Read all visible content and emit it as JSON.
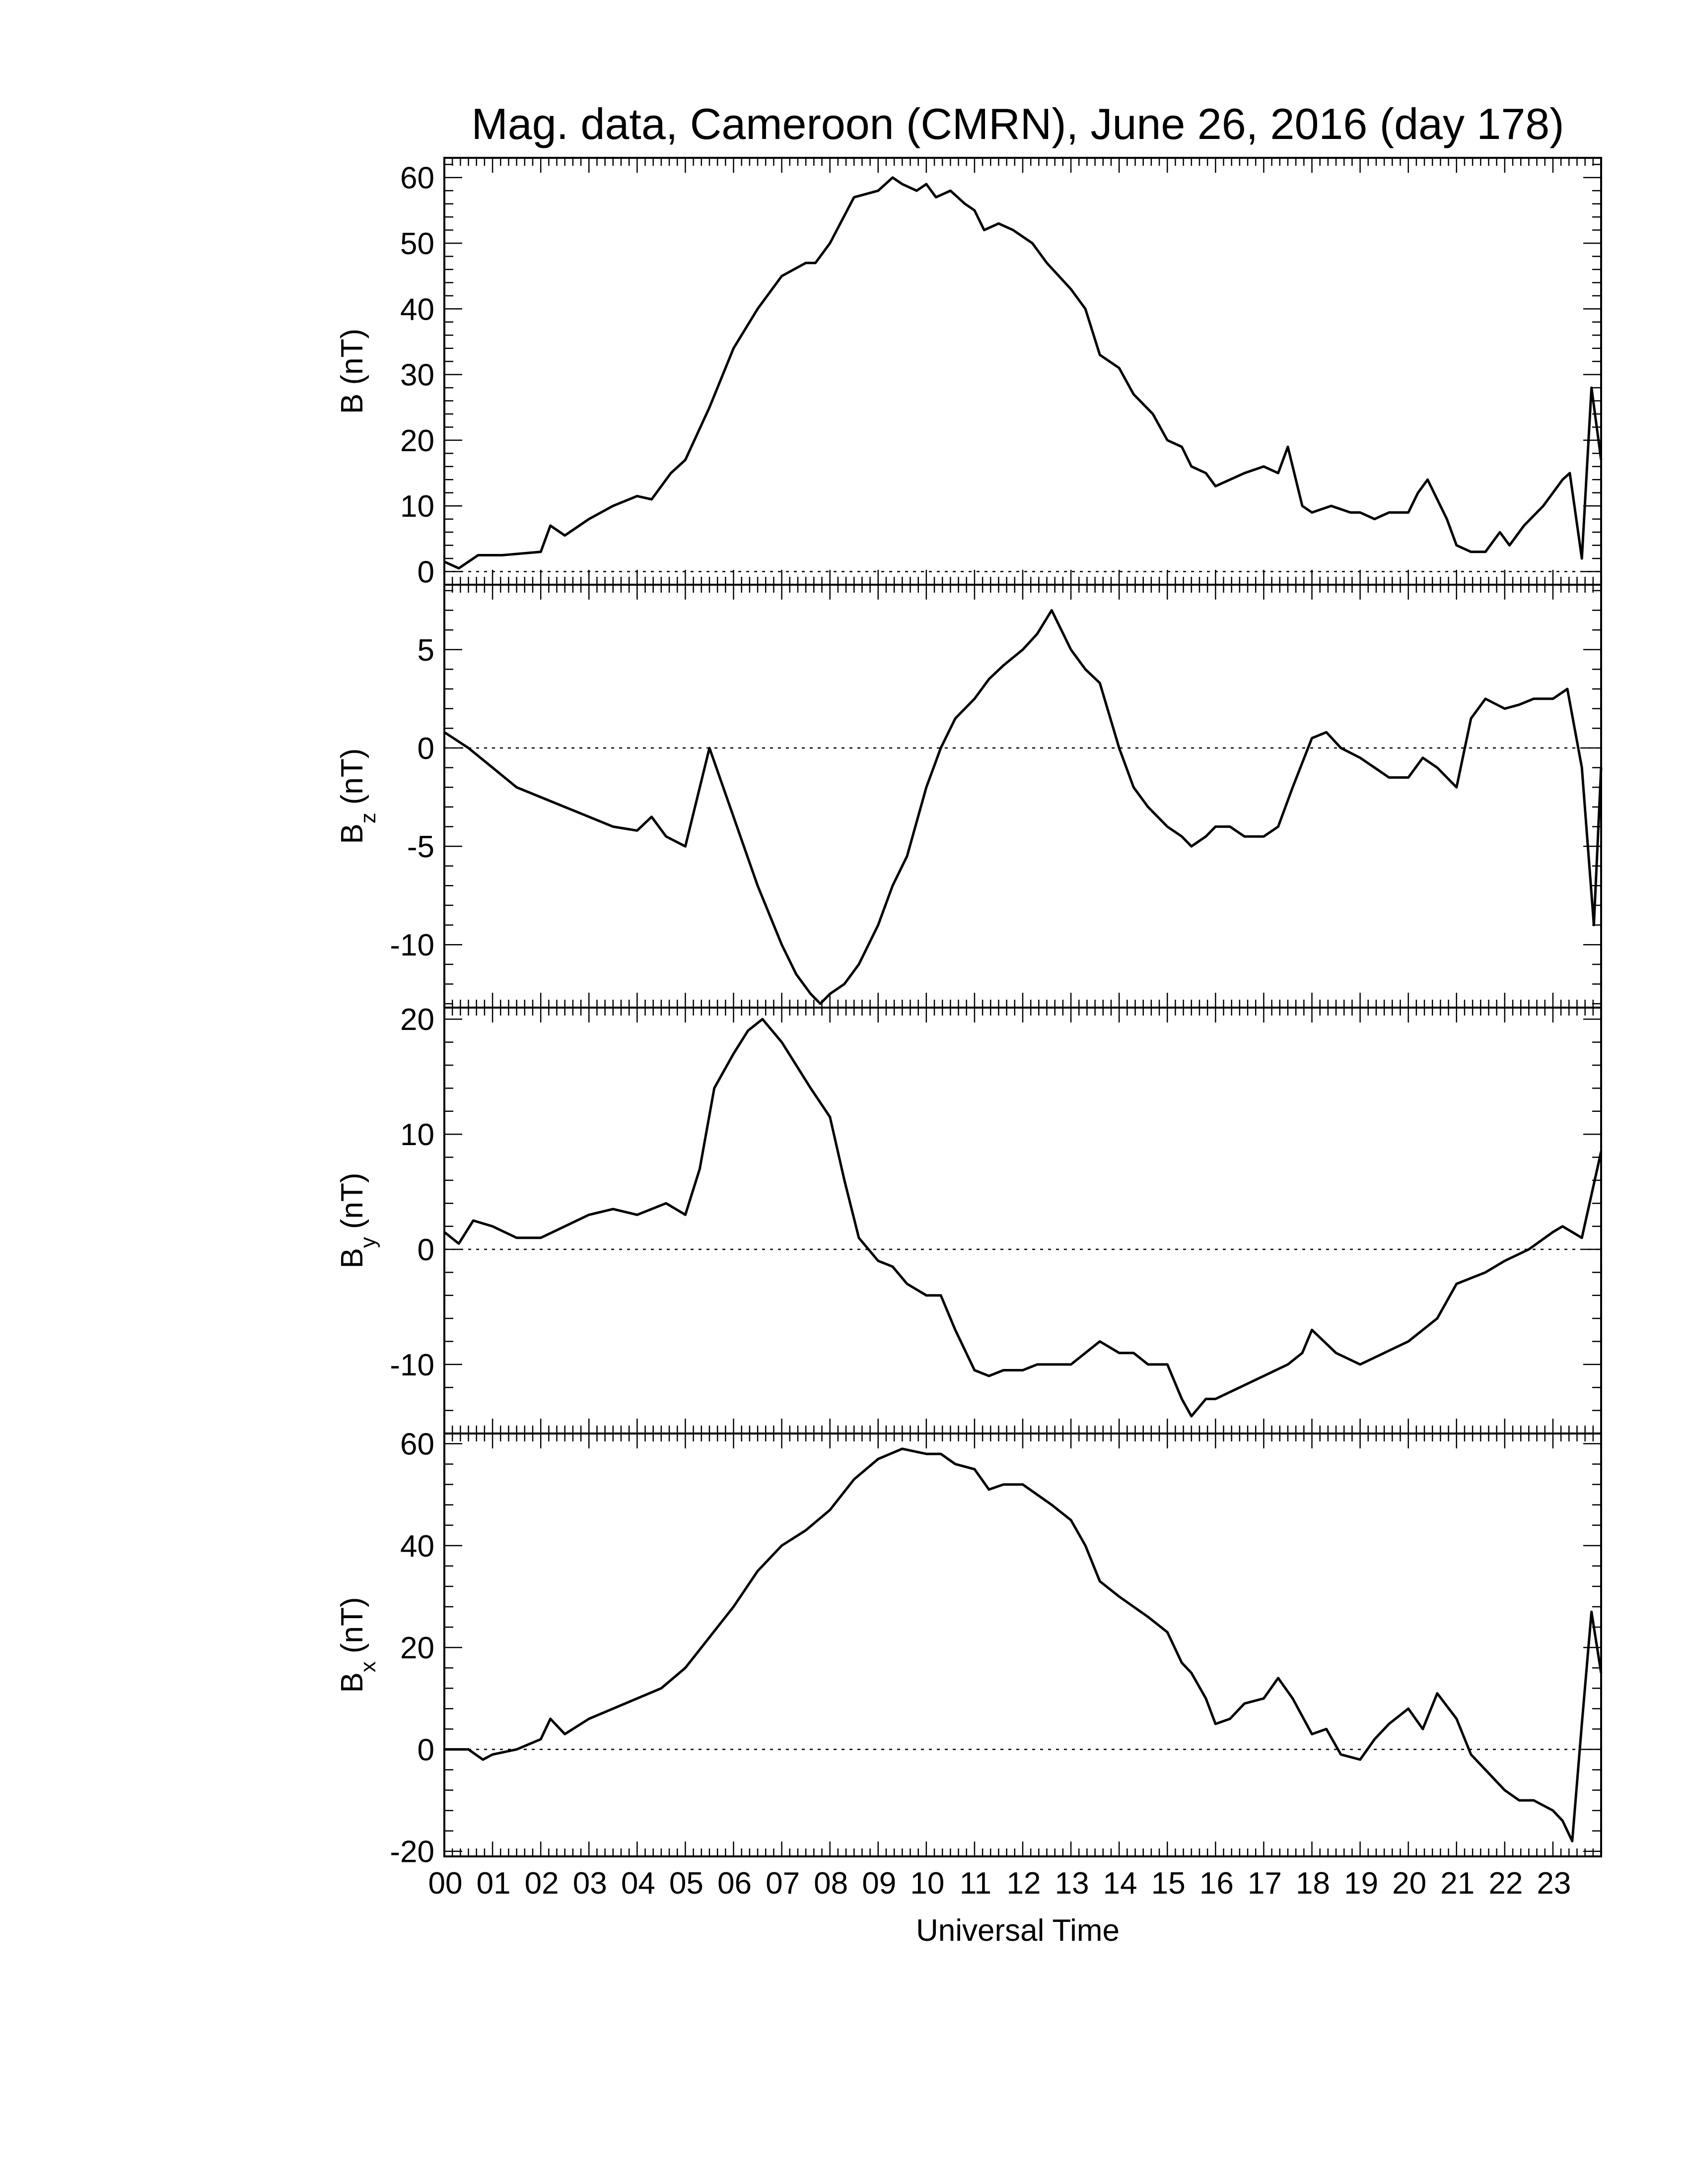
{
  "figure": {
    "title": "Mag. data, Cameroon (CMRN), June 26, 2016 (day 178)",
    "xlabel": "Universal Time",
    "x_ticks": [
      "00",
      "01",
      "02",
      "03",
      "04",
      "05",
      "06",
      "07",
      "08",
      "09",
      "10",
      "11",
      "12",
      "13",
      "14",
      "15",
      "16",
      "17",
      "18",
      "19",
      "20",
      "21",
      "22",
      "23"
    ]
  },
  "chart_data": [
    {
      "type": "line",
      "panel": "B",
      "ylabel_main": "B (nT)",
      "ylabel_sub": "",
      "ylabel_tail": "",
      "ylim": [
        -2,
        63
      ],
      "yticks": [
        0,
        10,
        20,
        30,
        40,
        50,
        60
      ],
      "zero_line": true,
      "x": [
        0,
        0.3,
        0.7,
        1.2,
        2,
        2.2,
        2.5,
        3,
        3.5,
        4,
        4.3,
        4.7,
        5,
        5.5,
        6,
        6.5,
        7,
        7.5,
        7.7,
        8,
        8.5,
        9,
        9.3,
        9.5,
        9.8,
        10,
        10.2,
        10.5,
        10.8,
        11,
        11.2,
        11.5,
        11.8,
        12,
        12.2,
        12.5,
        13,
        13.3,
        13.6,
        13.8,
        14,
        14.3,
        14.7,
        15,
        15.3,
        15.5,
        15.8,
        16,
        16.3,
        16.6,
        17,
        17.3,
        17.5,
        17.8,
        18,
        18.4,
        18.8,
        19,
        19.3,
        19.6,
        20,
        20.2,
        20.4,
        20.6,
        20.8,
        21,
        21.3,
        21.6,
        21.9,
        22.1,
        22.4,
        22.8,
        23,
        23.2,
        23.35,
        23.6,
        23.8,
        24
      ],
      "values": [
        1.5,
        0.5,
        2.5,
        2.5,
        3,
        7,
        5.5,
        8,
        10,
        11.5,
        11,
        15,
        17,
        25,
        34,
        40,
        45,
        47,
        47,
        50,
        57,
        58,
        60,
        59,
        58,
        59,
        57,
        58,
        56,
        55,
        52,
        53,
        52,
        51,
        50,
        47,
        43,
        40,
        33,
        32,
        31,
        27,
        24,
        20,
        19,
        16,
        15,
        13,
        14,
        15,
        16,
        15,
        19,
        10,
        9,
        10,
        9,
        9,
        8,
        9,
        9,
        12,
        14,
        11,
        8,
        4,
        3,
        3,
        6,
        4,
        7,
        10,
        12,
        14,
        15,
        2,
        28,
        17
      ]
    },
    {
      "type": "line",
      "panel": "Bz",
      "ylabel_main": "B",
      "ylabel_sub": "z",
      "ylabel_tail": "(nT)",
      "ylim": [
        -13.2,
        8.3
      ],
      "yticks": [
        -10,
        -5,
        0,
        5
      ],
      "zero_line": true,
      "x": [
        0,
        0.5,
        1,
        1.5,
        2,
        2.5,
        3,
        3.5,
        4,
        4.3,
        4.6,
        5,
        5.5,
        6,
        6.5,
        7,
        7.3,
        7.6,
        7.8,
        8,
        8.3,
        8.6,
        9,
        9.3,
        9.6,
        10,
        10.3,
        10.6,
        11,
        11.3,
        11.6,
        12,
        12.3,
        12.6,
        13,
        13.3,
        13.6,
        14,
        14.3,
        14.6,
        15,
        15.3,
        15.5,
        15.8,
        16,
        16.3,
        16.6,
        17,
        17.3,
        17.6,
        18,
        18.3,
        18.6,
        19,
        19.3,
        19.6,
        20,
        20.3,
        20.6,
        21,
        21.3,
        21.6,
        22,
        22.3,
        22.6,
        23,
        23.3,
        23.6,
        23.85,
        24
      ],
      "values": [
        0.8,
        0,
        -1,
        -2,
        -2.5,
        -3,
        -3.5,
        -4,
        -4.2,
        -3.5,
        -4.5,
        -5,
        0,
        -3.5,
        -7,
        -10,
        -11.5,
        -12.5,
        -13,
        -12.5,
        -12,
        -11,
        -9,
        -7,
        -5.5,
        -2,
        0,
        1.5,
        2.5,
        3.5,
        4.2,
        5,
        5.8,
        7,
        5,
        4,
        3.3,
        0,
        -2,
        -3,
        -4,
        -4.5,
        -5,
        -4.5,
        -4,
        -4,
        -4.5,
        -4.5,
        -4,
        -2,
        0.5,
        0.8,
        0,
        -0.5,
        -1,
        -1.5,
        -1.5,
        -0.5,
        -1,
        -2,
        1.5,
        2.5,
        2,
        2.2,
        2.5,
        2.5,
        3,
        -1,
        -9,
        -1
      ]
    },
    {
      "type": "line",
      "panel": "By",
      "ylabel_main": "B",
      "ylabel_sub": "y",
      "ylabel_tail": "(nT)",
      "ylim": [
        -16,
        21
      ],
      "yticks": [
        -10,
        0,
        10,
        20
      ],
      "zero_line": true,
      "x": [
        0,
        0.3,
        0.6,
        1,
        1.5,
        2,
        2.5,
        3,
        3.5,
        4,
        4.3,
        4.6,
        5,
        5.3,
        5.6,
        6,
        6.3,
        6.6,
        7,
        7.3,
        7.6,
        8,
        8.3,
        8.6,
        9,
        9.3,
        9.6,
        10,
        10.3,
        10.6,
        11,
        11.3,
        11.6,
        12,
        12.3,
        12.6,
        13,
        13.3,
        13.6,
        14,
        14.3,
        14.6,
        15,
        15.3,
        15.5,
        15.8,
        16,
        16.5,
        17,
        17.5,
        17.8,
        18,
        18.5,
        19,
        19.5,
        20,
        20.3,
        20.6,
        21,
        21.3,
        21.6,
        22,
        22.5,
        23,
        23.2,
        23.4,
        23.6,
        24
      ],
      "values": [
        1.5,
        0.5,
        2.5,
        2,
        1,
        1,
        2,
        3,
        3.5,
        3,
        3.5,
        4,
        3,
        7,
        14,
        17,
        19,
        20,
        18,
        16,
        14,
        11.5,
        6,
        1,
        -1,
        -1.5,
        -3,
        -4,
        -4,
        -7,
        -10.5,
        -11,
        -10.5,
        -10.5,
        -10,
        -10,
        -10,
        -9,
        -8,
        -9,
        -9,
        -10,
        -10,
        -13,
        -14.5,
        -13,
        -13,
        -12,
        -11,
        -10,
        -9,
        -7,
        -9,
        -10,
        -9,
        -8,
        -7,
        -6,
        -3,
        -2.5,
        -2,
        -1,
        0,
        1.5,
        2,
        1.5,
        1,
        8.5
      ]
    },
    {
      "type": "line",
      "panel": "Bx",
      "ylabel_main": "B",
      "ylabel_sub": "x",
      "ylabel_tail": "(nT)",
      "ylim": [
        -21,
        62
      ],
      "yticks": [
        -20,
        0,
        20,
        40,
        60
      ],
      "zero_line": true,
      "x": [
        0,
        0.5,
        0.8,
        1,
        1.5,
        2,
        2.2,
        2.5,
        3,
        3.5,
        4,
        4.5,
        5,
        5.5,
        6,
        6.5,
        7,
        7.5,
        8,
        8.5,
        9,
        9.5,
        10,
        10.3,
        10.6,
        11,
        11.3,
        11.6,
        12,
        12.3,
        12.6,
        13,
        13.3,
        13.6,
        14,
        14.3,
        14.6,
        15,
        15.3,
        15.5,
        15.8,
        16,
        16.3,
        16.6,
        17,
        17.3,
        17.6,
        18,
        18.3,
        18.6,
        19,
        19.3,
        19.6,
        20,
        20.3,
        20.6,
        21,
        21.3,
        21.6,
        22,
        22.3,
        22.6,
        23,
        23.2,
        23.4,
        23.6,
        23.8,
        24
      ],
      "values": [
        0,
        0,
        -2,
        -1,
        0,
        2,
        6,
        3,
        6,
        8,
        10,
        12,
        16,
        22,
        28,
        35,
        40,
        43,
        47,
        53,
        57,
        59,
        58,
        58,
        56,
        55,
        51,
        52,
        52,
        50,
        48,
        45,
        40,
        33,
        30,
        28,
        26,
        23,
        17,
        15,
        10,
        5,
        6,
        9,
        10,
        14,
        10,
        3,
        4,
        -1,
        -2,
        2,
        5,
        8,
        4,
        11,
        6,
        -1,
        -4,
        -8,
        -10,
        -10,
        -12,
        -14,
        -18,
        5,
        27,
        15
      ]
    }
  ]
}
